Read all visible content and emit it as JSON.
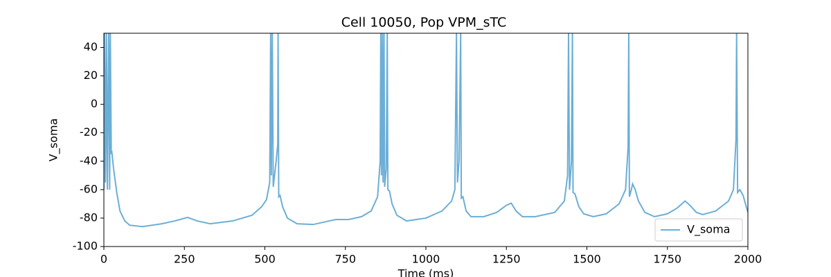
{
  "chart_data": {
    "type": "line",
    "title": "Cell 10050, Pop VPM_sTC",
    "x_label": "Time (ms)",
    "y_label": "V_soma",
    "x": [
      0,
      2,
      5,
      8,
      11,
      15,
      18,
      20,
      23,
      25,
      30,
      40,
      50,
      65,
      80,
      120,
      180,
      220,
      260,
      290,
      330,
      400,
      460,
      490,
      505,
      515,
      518,
      520,
      523,
      526,
      530,
      535,
      540,
      541,
      543,
      547,
      555,
      570,
      600,
      650,
      700,
      720,
      760,
      800,
      830,
      850,
      858,
      860,
      862,
      865,
      867,
      870,
      872,
      877,
      880,
      882,
      887,
      895,
      910,
      940,
      1000,
      1050,
      1080,
      1090,
      1095,
      1098,
      1103,
      1108,
      1110,
      1115,
      1125,
      1140,
      1180,
      1220,
      1250,
      1265,
      1280,
      1300,
      1340,
      1400,
      1430,
      1440,
      1443,
      1446,
      1452,
      1455,
      1457,
      1463,
      1475,
      1490,
      1520,
      1560,
      1600,
      1620,
      1628,
      1630,
      1632,
      1638,
      1642,
      1650,
      1660,
      1680,
      1710,
      1750,
      1780,
      1805,
      1820,
      1840,
      1860,
      1900,
      1940,
      1955,
      1963,
      1965,
      1968,
      1975,
      1985,
      2000
    ],
    "series": [
      {
        "name": "V_soma",
        "color": "#6baed6",
        "values": [
          -60,
          50,
          -55,
          50,
          -60,
          50,
          -60,
          50,
          -35,
          -34,
          -45,
          -62,
          -75,
          -82,
          -85,
          -86,
          -84,
          -82,
          -79.5,
          -82,
          -84,
          -82,
          -78,
          -72,
          -67,
          -55,
          50,
          -50,
          50,
          -58,
          -50,
          -40,
          -28,
          50,
          -65,
          -64,
          -72,
          -80,
          -84,
          -84.5,
          -82,
          -81,
          -81,
          -79,
          -75,
          -65,
          -40,
          50,
          -50,
          50,
          -55,
          50,
          -58,
          -45,
          50,
          -60,
          -61,
          -70,
          -78,
          -82,
          -80,
          -75,
          -68,
          -60,
          50,
          -55,
          -40,
          50,
          -66,
          -65,
          -75,
          -79,
          -79,
          -76,
          -71,
          -69.5,
          -75,
          -79,
          -79,
          -76,
          -68,
          -50,
          50,
          -60,
          -40,
          50,
          -62,
          -63,
          -72,
          -77,
          -79,
          -77,
          -70,
          -60,
          -30,
          50,
          -65,
          -60,
          -56,
          -60,
          -68,
          -76,
          -79,
          -77,
          -73,
          -68,
          -71,
          -76,
          -77.5,
          -75,
          -68,
          -60,
          -25,
          50,
          -62,
          -60,
          -64,
          -76
        ]
      }
    ],
    "xlim": [
      0,
      2000
    ],
    "ylim": [
      -100,
      50
    ],
    "xticks": [
      0,
      250,
      500,
      750,
      1000,
      1250,
      1500,
      1750,
      2000
    ],
    "yticks": [
      -100,
      -80,
      -60,
      -40,
      -20,
      0,
      20,
      40
    ],
    "grid": false,
    "legend": "lower right"
  }
}
